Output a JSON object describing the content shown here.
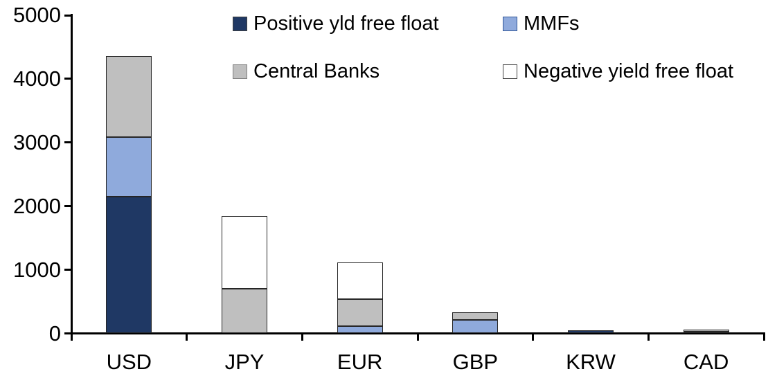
{
  "chart_data": {
    "type": "bar",
    "stacked": true,
    "title": "",
    "xlabel": "",
    "ylabel": "",
    "categories": [
      "USD",
      "JPY",
      "EUR",
      "GBP",
      "KRW",
      "CAD"
    ],
    "series": [
      {
        "name": "Positive yld free float",
        "color": "#1F3864",
        "border": "#404040",
        "values": [
          2150,
          0,
          0,
          0,
          45,
          0
        ]
      },
      {
        "name": "MMFs",
        "color": "#8FAADC",
        "border": "#2F5597",
        "values": [
          930,
          0,
          110,
          210,
          0,
          30
        ]
      },
      {
        "name": "Central Banks",
        "color": "#BFBFBF",
        "border": "#7F7F7F",
        "values": [
          1275,
          700,
          430,
          120,
          0,
          35
        ]
      },
      {
        "name": "Negative yield free float",
        "color": "#FFFFFF",
        "border": "#404040",
        "values": [
          0,
          1145,
          570,
          0,
          0,
          0
        ]
      }
    ],
    "totals": [
      4355,
      1845,
      1110,
      330,
      45,
      65
    ],
    "ylim": [
      0,
      5000
    ],
    "yticks": [
      0,
      1000,
      2000,
      3000,
      4000,
      5000
    ],
    "ytick_labels": [
      "0",
      "1000",
      "2000",
      "3000",
      "4000",
      "5000"
    ],
    "grid": false,
    "legend_position": "top",
    "legend_rows": [
      [
        "Positive yld free float",
        "MMFs"
      ],
      [
        "Central Banks",
        "Negative yield free float"
      ]
    ],
    "axis_color": "#000000",
    "segment_border_color": "#262626",
    "background_color": "#FFFFFF"
  }
}
